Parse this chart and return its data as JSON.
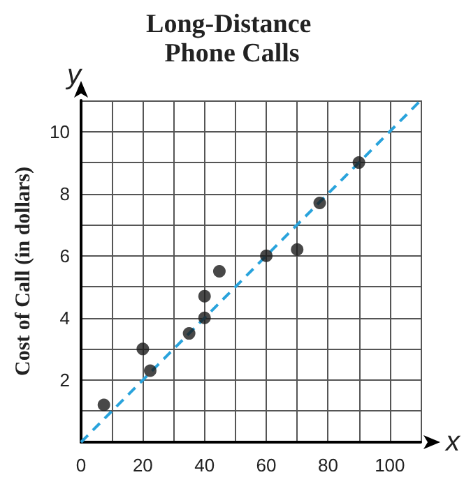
{
  "chart_data": {
    "type": "scatter",
    "title": "Long-Distance Phone Calls",
    "xlabel": "x",
    "ylabel": "Cost of Call (in dollars)",
    "annotations": [
      "y"
    ],
    "xlim": [
      0,
      110
    ],
    "ylim": [
      0,
      11
    ],
    "xticks": [
      {
        "value": 0,
        "label": "0"
      },
      {
        "value": 10,
        "label": null
      },
      20,
      {
        "value": 30,
        "label": null
      },
      40,
      {
        "value": 50,
        "label": null
      },
      60,
      {
        "value": 70,
        "label": null
      },
      80,
      {
        "value": 90,
        "label": null
      },
      100,
      {
        "value": 110,
        "label": null
      }
    ],
    "yticks": [
      {
        "value": 0,
        "label": null
      },
      {
        "value": 1,
        "label": null
      },
      2,
      {
        "value": 3,
        "label": null
      },
      4,
      {
        "value": 5,
        "label": null
      },
      6,
      {
        "value": 7,
        "label": null
      },
      8,
      {
        "value": 9,
        "label": null
      },
      10,
      {
        "value": 11,
        "label": null
      }
    ],
    "grid": true,
    "marker": "circle",
    "series": [
      {
        "color": "#1a1a1a",
        "x": [
          7.4,
          20,
          22.4,
          35,
          40,
          40,
          44.8,
          60,
          70,
          77.3,
          90
        ],
        "values": [
          1.2,
          3,
          2.3,
          3.5,
          4,
          4.7,
          5.5,
          6,
          6.2,
          7.7,
          9
        ]
      },
      {
        "type": "line",
        "color": "#29a3dc",
        "line_style": "dashed",
        "marker": "none",
        "x": [
          0,
          110
        ],
        "values": [
          0,
          11
        ]
      }
    ]
  }
}
